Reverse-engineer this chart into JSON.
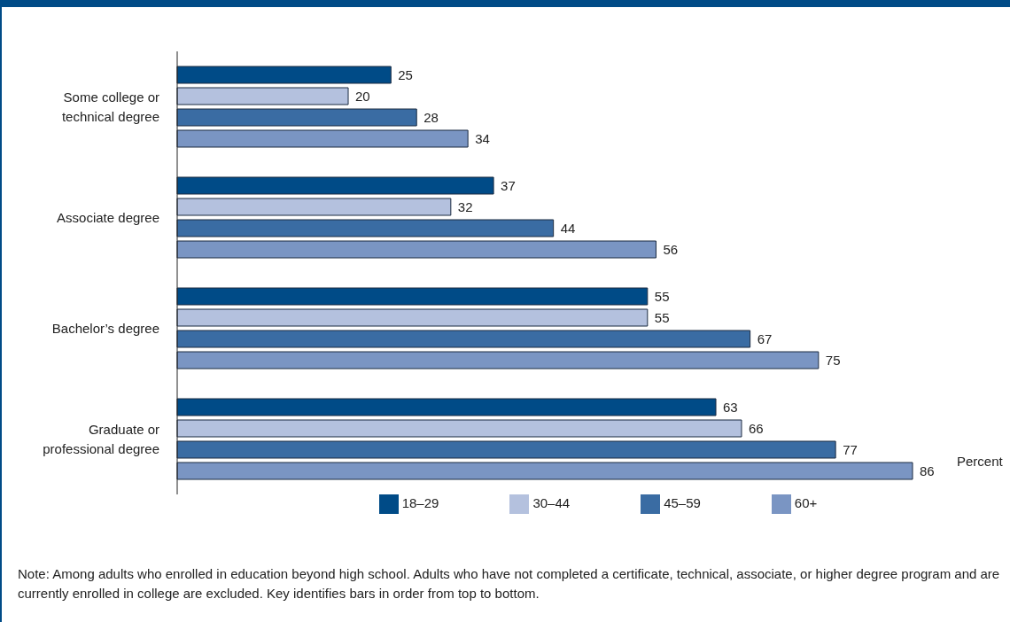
{
  "chart_data": {
    "type": "bar",
    "orientation": "horizontal",
    "xlabel": "Percent",
    "categories": [
      "Some college or technical degree",
      "Associate degree",
      "Bachelor’s degree",
      "Graduate or professional degree"
    ],
    "series": [
      {
        "name": "18–29",
        "color": "#004b87",
        "values": [
          25,
          37,
          55,
          63
        ]
      },
      {
        "name": "30–44",
        "color": "#b4c1de",
        "values": [
          20,
          32,
          55,
          66
        ]
      },
      {
        "name": "45–59",
        "color": "#3a6ca3",
        "values": [
          28,
          44,
          67,
          77
        ]
      },
      {
        "name": "60+",
        "color": "#7a95c3",
        "values": [
          34,
          56,
          75,
          86
        ]
      }
    ],
    "data_labels": true,
    "grid": false,
    "legend": "bottom",
    "annotations": [
      "Note: Among adults who enrolled in education beyond high school. Adults who have not completed a certificate, technical, associate, or higher degree program and are currently enrolled in college are excluded. Key identifies bars in order from top to bottom."
    ]
  }
}
